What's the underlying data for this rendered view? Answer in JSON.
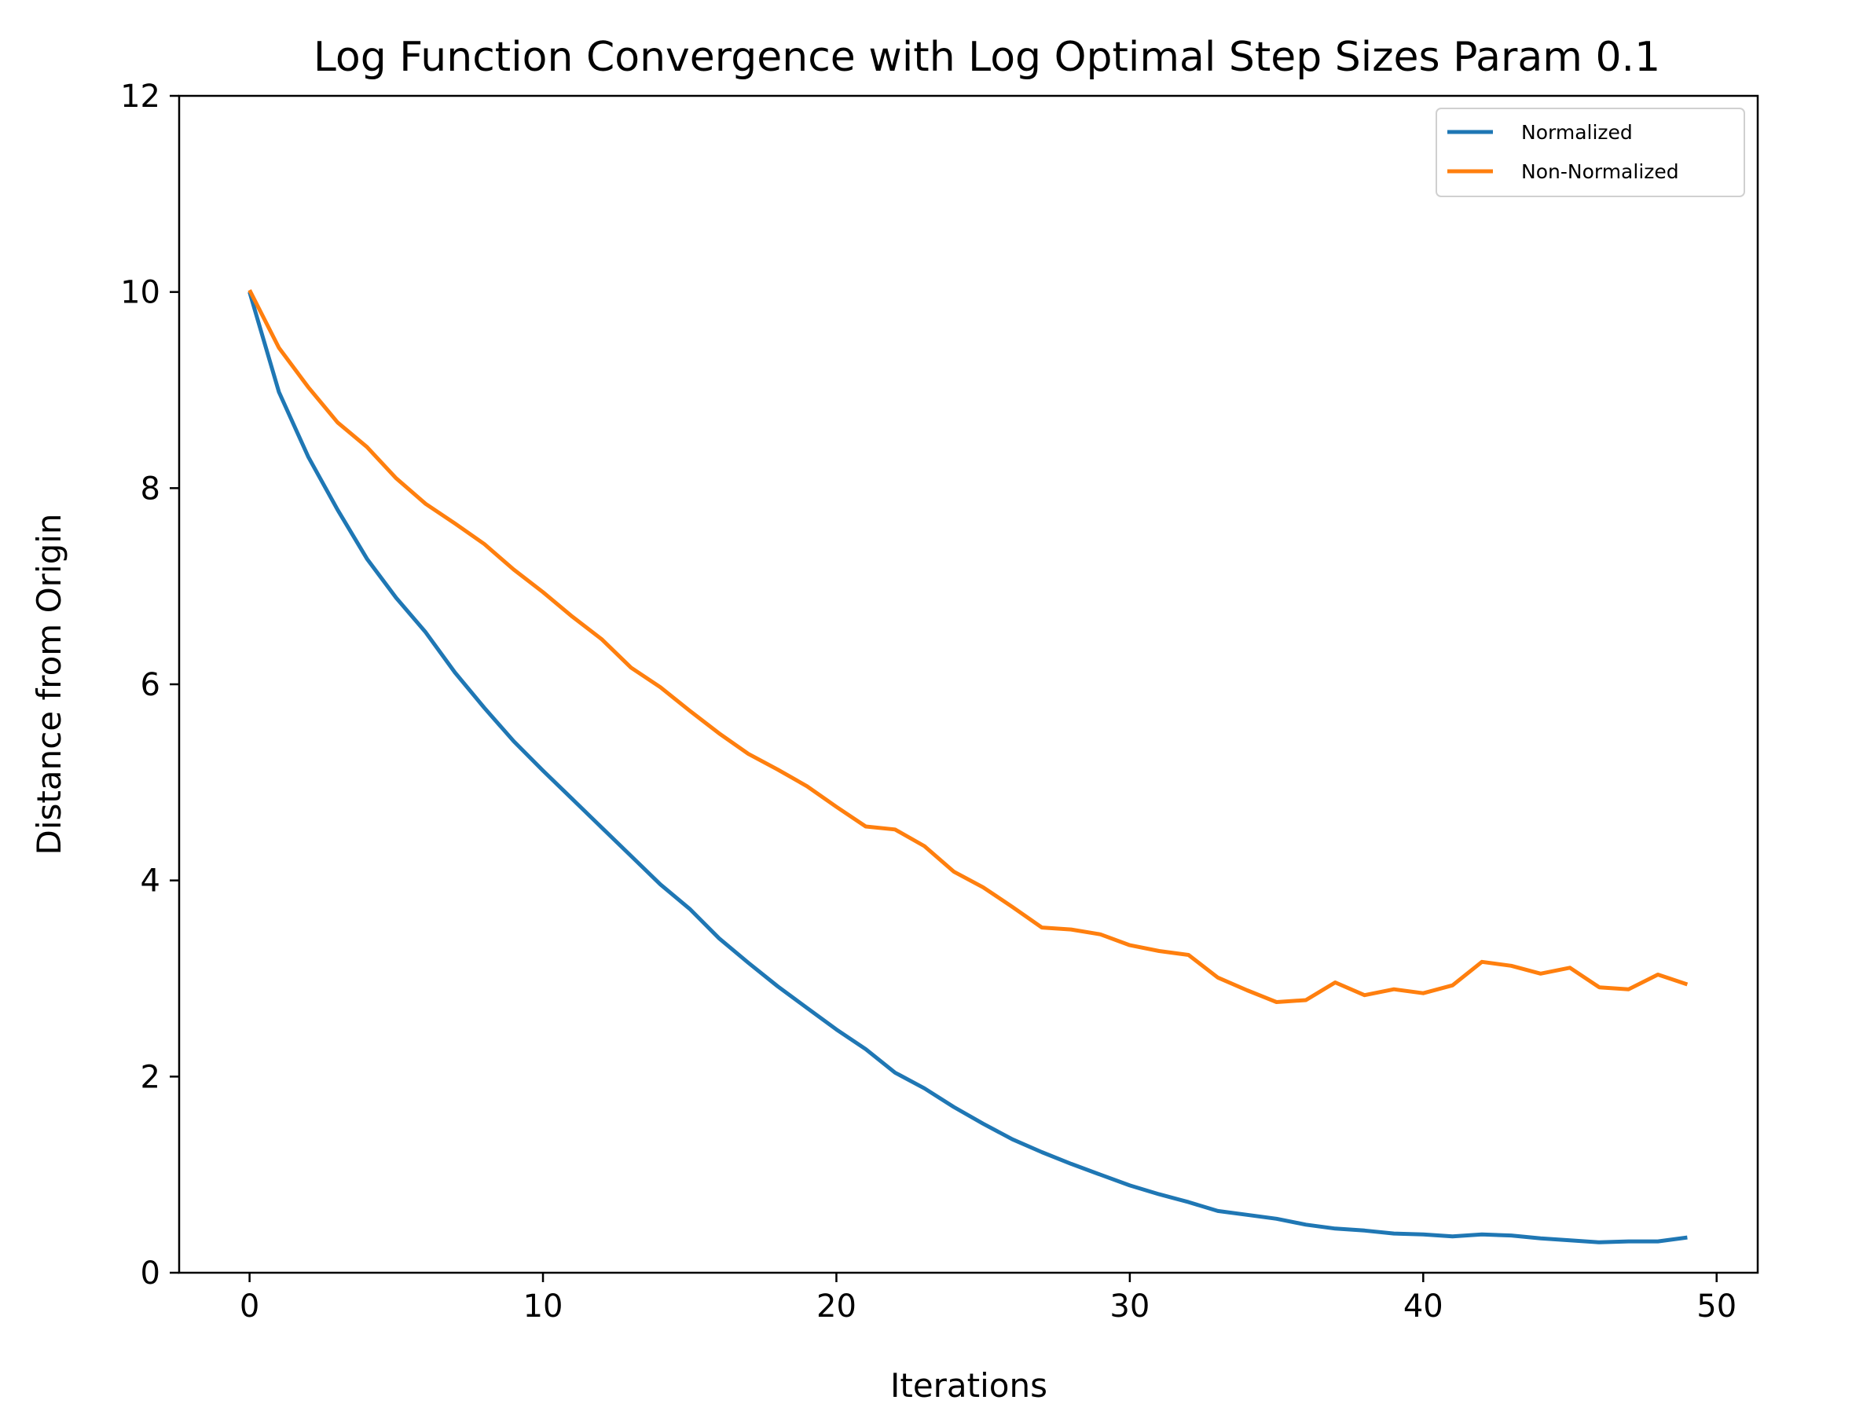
{
  "chart_data": {
    "type": "line",
    "title": "Log Function Convergence with Log Optimal Step Sizes Param 0.1",
    "xlabel": "Iterations",
    "ylabel": "Distance from Origin",
    "xlim": [
      -2.4,
      51.4
    ],
    "ylim": [
      0,
      12
    ],
    "xticks": [
      0,
      10,
      20,
      30,
      40,
      50
    ],
    "yticks": [
      0,
      2,
      4,
      6,
      8,
      10,
      12
    ],
    "grid": false,
    "legend_position": "top-right",
    "x": [
      0,
      1,
      2,
      3,
      4,
      5,
      6,
      7,
      8,
      9,
      10,
      11,
      12,
      13,
      14,
      15,
      16,
      17,
      18,
      19,
      20,
      21,
      22,
      23,
      24,
      25,
      26,
      27,
      28,
      29,
      30,
      31,
      32,
      33,
      34,
      35,
      36,
      37,
      38,
      39,
      40,
      41,
      42,
      43,
      44,
      45,
      46,
      47,
      48,
      49
    ],
    "series": [
      {
        "name": "Normalized",
        "color": "#1f77b4",
        "values": [
          10.0,
          8.98,
          8.32,
          7.78,
          7.28,
          6.88,
          6.53,
          6.12,
          5.76,
          5.42,
          5.12,
          4.83,
          4.54,
          4.25,
          3.96,
          3.71,
          3.41,
          3.16,
          2.92,
          2.7,
          2.48,
          2.28,
          2.04,
          1.88,
          1.69,
          1.52,
          1.36,
          1.23,
          1.11,
          1.0,
          0.89,
          0.8,
          0.72,
          0.63,
          0.59,
          0.55,
          0.49,
          0.45,
          0.43,
          0.4,
          0.39,
          0.37,
          0.39,
          0.38,
          0.35,
          0.33,
          0.31,
          0.32,
          0.32,
          0.36
        ]
      },
      {
        "name": "Non-Normalized",
        "color": "#ff7f0e",
        "values": [
          10.02,
          9.43,
          9.03,
          8.67,
          8.42,
          8.1,
          7.84,
          7.64,
          7.43,
          7.17,
          6.94,
          6.69,
          6.46,
          6.17,
          5.97,
          5.73,
          5.5,
          5.29,
          5.13,
          4.96,
          4.75,
          4.55,
          4.52,
          4.35,
          4.09,
          3.93,
          3.73,
          3.52,
          3.5,
          3.45,
          3.34,
          3.28,
          3.24,
          3.01,
          2.88,
          2.76,
          2.78,
          2.96,
          2.83,
          2.89,
          2.85,
          2.93,
          3.17,
          3.13,
          3.05,
          3.11,
          2.91,
          2.89,
          3.04,
          2.94
        ]
      }
    ]
  }
}
